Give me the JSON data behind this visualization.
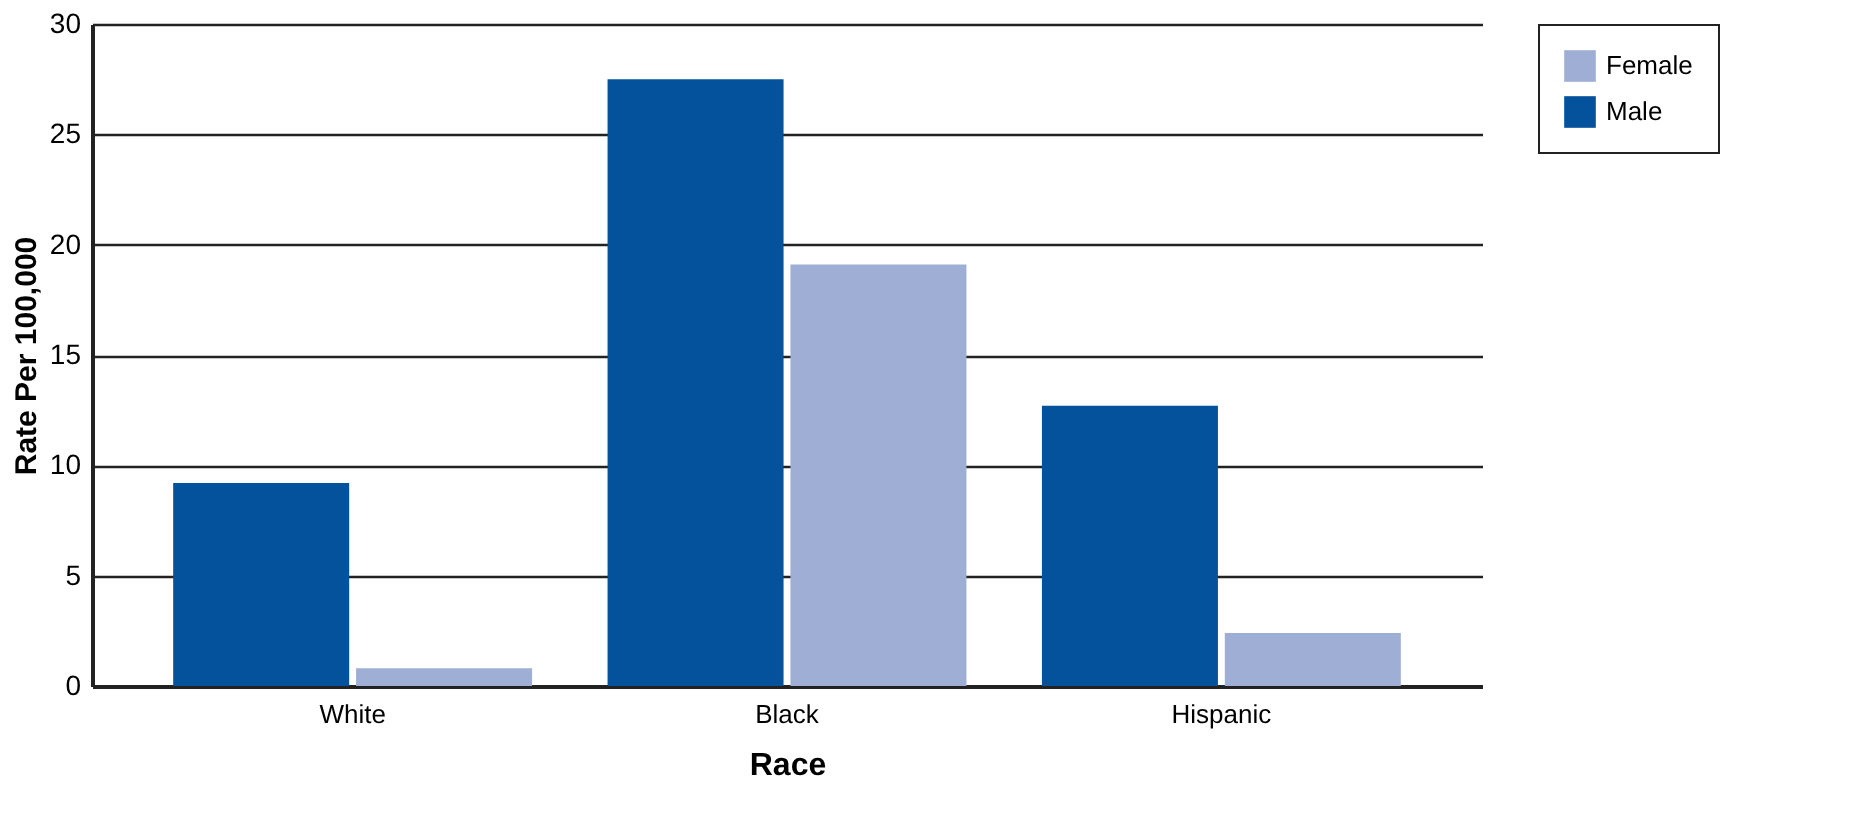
{
  "chart_data": {
    "type": "bar",
    "xlabel": "Race",
    "ylabel": "Rate Per 100,000",
    "categories": [
      "White",
      "Black",
      "Hispanic"
    ],
    "series": [
      {
        "name": "Male",
        "color": "#03529b",
        "values": [
          9.2,
          27.5,
          12.7
        ]
      },
      {
        "name": "Female",
        "color": "#9eaed5",
        "values": [
          0.8,
          19.1,
          2.4
        ]
      }
    ],
    "ylim": [
      0,
      30
    ],
    "yticks": [
      0,
      5,
      10,
      15,
      20,
      25,
      30
    ],
    "grid": "y",
    "legend": "top right"
  }
}
